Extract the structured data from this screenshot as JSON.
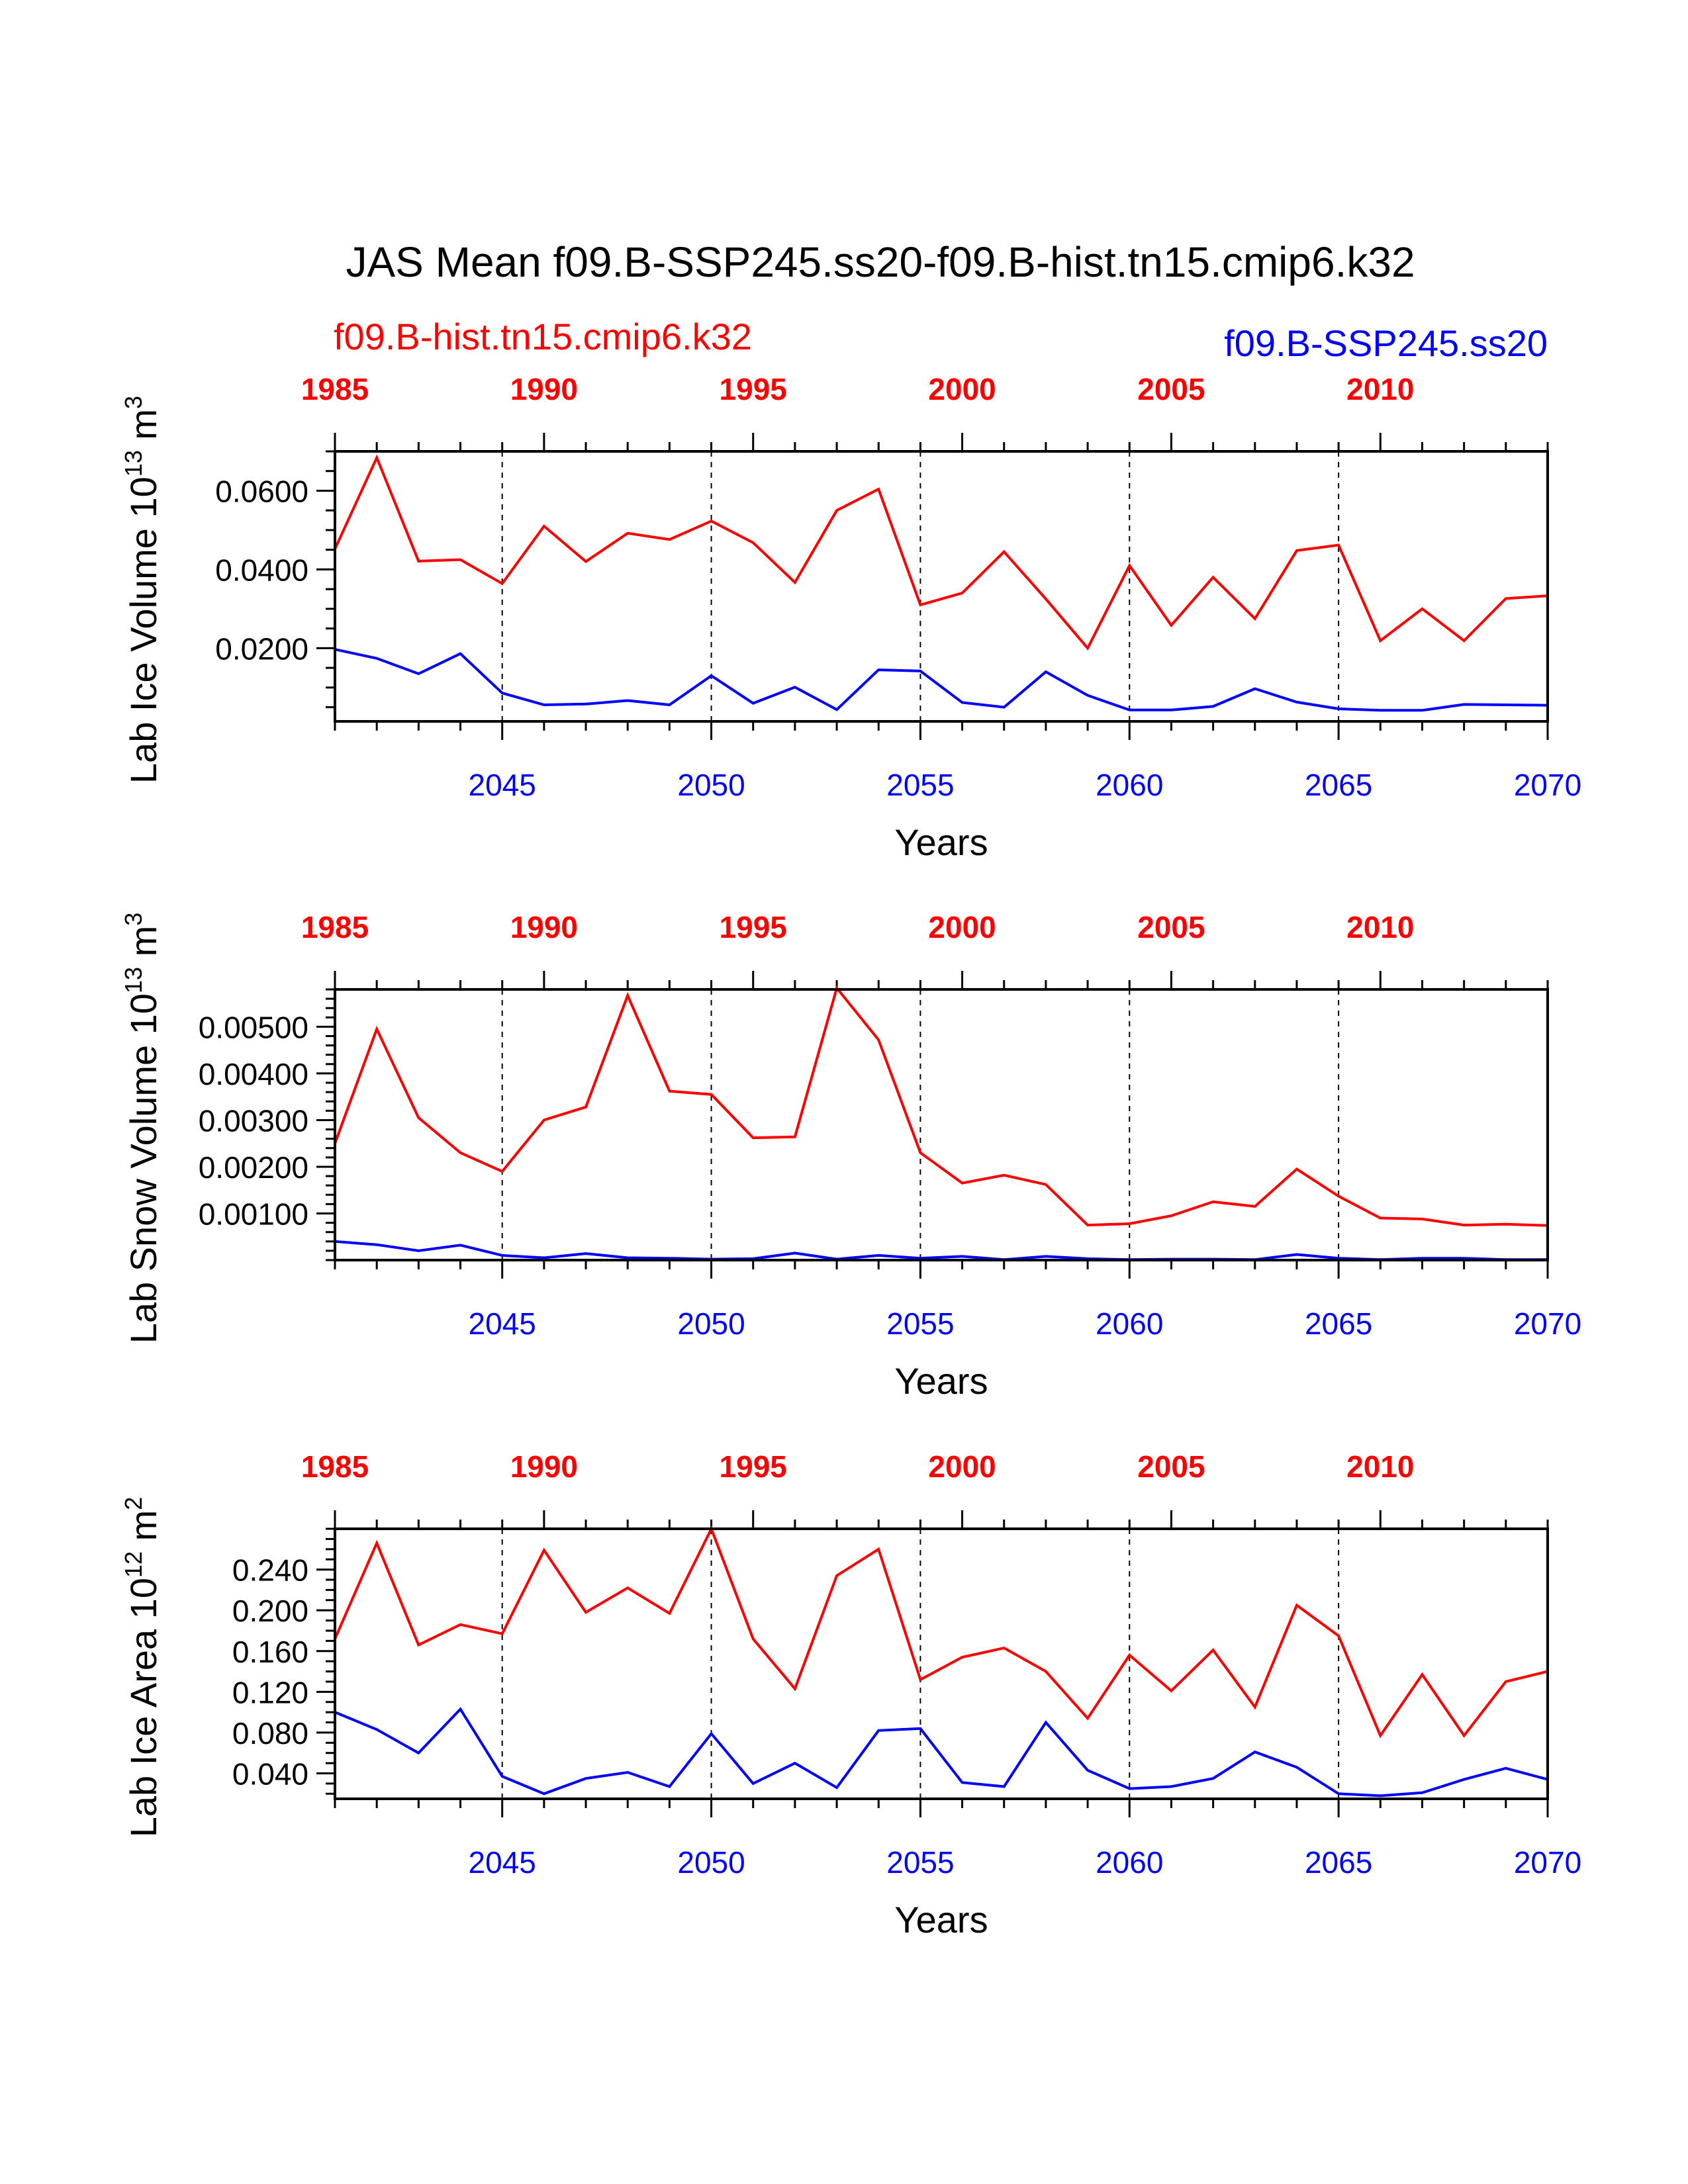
{
  "title": "JAS Mean f09.B-SSP245.ss20-f09.B-hist.tn15.cmip6.k32",
  "legend_left": "f09.B-hist.tn15.cmip6.k32",
  "legend_right": "f09.B-SSP245.ss20",
  "colors": {
    "hist": "#ff0000",
    "ssp": "#0000ff",
    "axis": "#000000"
  },
  "chart_data": [
    {
      "type": "line",
      "ylabel": "Lab Ice Volume 10",
      "ylabel_exp": "13",
      "ylabel_unit": " m",
      "ylabel_unit_exp": "3",
      "xlabel": "Years",
      "ylim": [
        0.0014,
        0.07
      ],
      "yticks": [
        0.02,
        0.04,
        0.06
      ],
      "ytick_labels": [
        "0.0200",
        "0.0400",
        "0.0600"
      ],
      "yminor_step": 0.005,
      "bottom_xlim": [
        2041,
        2070
      ],
      "bottom_ticks": [
        2045,
        2050,
        2055,
        2060,
        2065,
        2070
      ],
      "top_xlim": [
        1985,
        2014
      ],
      "top_ticks": [
        1985,
        1990,
        1995,
        2000,
        2005,
        2010
      ],
      "vlines": [
        2045,
        2050,
        2055,
        2060,
        2065
      ],
      "series": [
        {
          "key": "hist",
          "x": [
            1985,
            1986,
            1987,
            1988,
            1989,
            1990,
            1991,
            1992,
            1993,
            1994,
            1995,
            1996,
            1997,
            1998,
            1999,
            2000,
            2001,
            2002,
            2003,
            2004,
            2005,
            2006,
            2007,
            2008,
            2009,
            2010,
            2011,
            2012,
            2013,
            2014
          ],
          "values": [
            0.0452,
            0.0684,
            0.0421,
            0.0425,
            0.0364,
            0.051,
            0.042,
            0.0492,
            0.0476,
            0.0523,
            0.0468,
            0.0367,
            0.055,
            0.0604,
            0.031,
            0.034,
            0.0445,
            0.0325,
            0.02,
            0.041,
            0.0258,
            0.038,
            0.0275,
            0.0448,
            0.0462,
            0.0219,
            0.03,
            0.0219,
            0.0326,
            0.0333
          ]
        },
        {
          "key": "ssp",
          "x": [
            2041,
            2042,
            2043,
            2044,
            2045,
            2046,
            2047,
            2048,
            2049,
            2050,
            2051,
            2052,
            2053,
            2054,
            2055,
            2056,
            2057,
            2058,
            2059,
            2060,
            2061,
            2062,
            2063,
            2064,
            2065,
            2066,
            2067,
            2068,
            2069,
            2070
          ],
          "values": [
            0.0197,
            0.0174,
            0.0135,
            0.0186,
            0.0086,
            0.0056,
            0.0058,
            0.0067,
            0.0056,
            0.013,
            0.006,
            0.0101,
            0.0044,
            0.0145,
            0.0142,
            0.0062,
            0.005,
            0.014,
            0.008,
            0.0043,
            0.0043,
            0.0052,
            0.0097,
            0.0063,
            0.0046,
            0.0042,
            0.0042,
            0.0057,
            0.0056,
            0.0055
          ]
        }
      ]
    },
    {
      "type": "line",
      "ylabel": "Lab Snow Volume 10",
      "ylabel_exp": "13",
      "ylabel_unit": " m",
      "ylabel_unit_exp": "3",
      "xlabel": "Years",
      "ylim": [
        0.0,
        0.0058
      ],
      "yticks": [
        0.001,
        0.002,
        0.003,
        0.004,
        0.005
      ],
      "ytick_labels": [
        "0.00100",
        "0.00200",
        "0.00300",
        "0.00400",
        "0.00500"
      ],
      "yminor_step": 0.0002,
      "bottom_xlim": [
        2041,
        2070
      ],
      "bottom_ticks": [
        2045,
        2050,
        2055,
        2060,
        2065,
        2070
      ],
      "top_xlim": [
        1985,
        2014
      ],
      "top_ticks": [
        1985,
        1990,
        1995,
        2000,
        2005,
        2010
      ],
      "vlines": [
        2045,
        2050,
        2055,
        2060,
        2065
      ],
      "series": [
        {
          "key": "hist",
          "x": [
            1985,
            1986,
            1987,
            1988,
            1989,
            1990,
            1991,
            1992,
            1993,
            1994,
            1995,
            1996,
            1997,
            1998,
            1999,
            2000,
            2001,
            2002,
            2003,
            2004,
            2005,
            2006,
            2007,
            2008,
            2009,
            2010,
            2011,
            2012,
            2013,
            2014
          ],
          "values": [
            0.0025,
            0.00495,
            0.00305,
            0.0023,
            0.0019,
            0.003,
            0.00328,
            0.00567,
            0.00362,
            0.00355,
            0.00262,
            0.00264,
            0.00583,
            0.00472,
            0.0023,
            0.00165,
            0.00182,
            0.00162,
            0.00075,
            0.00078,
            0.00095,
            0.00125,
            0.00115,
            0.00195,
            0.00137,
            0.0009,
            0.00088,
            0.00075,
            0.00077,
            0.00074
          ]
        },
        {
          "key": "ssp",
          "x": [
            2041,
            2042,
            2043,
            2044,
            2045,
            2046,
            2047,
            2048,
            2049,
            2050,
            2051,
            2052,
            2053,
            2054,
            2055,
            2056,
            2057,
            2058,
            2059,
            2060,
            2061,
            2062,
            2063,
            2064,
            2065,
            2066,
            2067,
            2068,
            2069,
            2070
          ],
          "values": [
            0.0004,
            0.00033,
            0.0002,
            0.00032,
            0.0001,
            5e-05,
            0.00014,
            5e-05,
            4e-05,
            2e-05,
            3e-05,
            0.00015,
            2e-05,
            0.0001,
            4e-05,
            8e-05,
            1e-05,
            8e-05,
            3e-05,
            1e-05,
            2e-05,
            2e-05,
            1e-05,
            0.00012,
            4e-05,
            1e-05,
            4e-05,
            4e-05,
            1e-05,
            1e-05
          ]
        }
      ]
    },
    {
      "type": "line",
      "ylabel": "Lab Ice Area 10",
      "ylabel_exp": "12",
      "ylabel_unit": " m",
      "ylabel_unit_exp": "2",
      "xlabel": "Years",
      "ylim": [
        0.015,
        0.28
      ],
      "yticks": [
        0.04,
        0.08,
        0.12,
        0.16,
        0.2,
        0.24
      ],
      "ytick_labels": [
        "0.040",
        "0.080",
        "0.120",
        "0.160",
        "0.200",
        "0.240"
      ],
      "yminor_step": 0.01,
      "bottom_xlim": [
        2041,
        2070
      ],
      "bottom_ticks": [
        2045,
        2050,
        2055,
        2060,
        2065,
        2070
      ],
      "top_xlim": [
        1985,
        2014
      ],
      "top_ticks": [
        1985,
        1990,
        1995,
        2000,
        2005,
        2010
      ],
      "vlines": [
        2045,
        2050,
        2055,
        2060,
        2065
      ],
      "series": [
        {
          "key": "hist",
          "x": [
            1985,
            1986,
            1987,
            1988,
            1989,
            1990,
            1991,
            1992,
            1993,
            1994,
            1995,
            1996,
            1997,
            1998,
            1999,
            2000,
            2001,
            2002,
            2003,
            2004,
            2005,
            2006,
            2007,
            2008,
            2009,
            2010,
            2011,
            2012,
            2013,
            2014
          ],
          "values": [
            0.172,
            0.266,
            0.166,
            0.186,
            0.177,
            0.259,
            0.198,
            0.222,
            0.197,
            0.28,
            0.172,
            0.123,
            0.234,
            0.26,
            0.132,
            0.154,
            0.163,
            0.14,
            0.094,
            0.156,
            0.121,
            0.161,
            0.105,
            0.205,
            0.175,
            0.077,
            0.137,
            0.077,
            0.13,
            0.14
          ]
        },
        {
          "key": "ssp",
          "x": [
            2041,
            2042,
            2043,
            2044,
            2045,
            2046,
            2047,
            2048,
            2049,
            2050,
            2051,
            2052,
            2053,
            2054,
            2055,
            2056,
            2057,
            2058,
            2059,
            2060,
            2061,
            2062,
            2063,
            2064,
            2065,
            2066,
            2067,
            2068,
            2069,
            2070
          ],
          "values": [
            0.1,
            0.083,
            0.06,
            0.103,
            0.037,
            0.02,
            0.035,
            0.041,
            0.027,
            0.079,
            0.03,
            0.05,
            0.026,
            0.082,
            0.084,
            0.031,
            0.027,
            0.09,
            0.043,
            0.025,
            0.027,
            0.035,
            0.061,
            0.046,
            0.02,
            0.018,
            0.021,
            0.034,
            0.045,
            0.034
          ]
        }
      ]
    }
  ]
}
